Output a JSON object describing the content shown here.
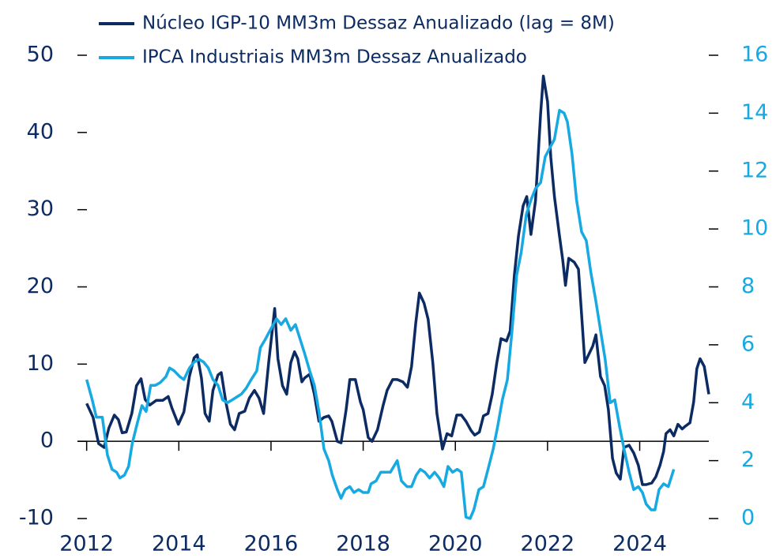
{
  "chart_data": {
    "type": "line",
    "legend": "top",
    "xlim": [
      2011.8,
      2025.5
    ],
    "xticks": [
      2012,
      2014,
      2016,
      2018,
      2020,
      2022,
      2024
    ],
    "ylim": [
      -10,
      50
    ],
    "yticks": [
      -10,
      0,
      10,
      20,
      30,
      40,
      50
    ],
    "y2lim": [
      0,
      16
    ],
    "y2ticks": [
      0,
      2,
      4,
      6,
      8,
      10,
      12,
      14,
      16
    ],
    "series": [
      {
        "name": "Núcleo IGP-10 MM3m Dessaz Anualizado (lag = 8M)",
        "color": "#0d2b63",
        "axis": "y",
        "x": [
          2012.0,
          2012.14,
          2012.26,
          2012.38,
          2012.48,
          2012.6,
          2012.69,
          2012.77,
          2012.86,
          2012.98,
          2013.08,
          2013.18,
          2013.27,
          2013.37,
          2013.51,
          2013.65,
          2013.77,
          2013.85,
          2013.99,
          2014.11,
          2014.23,
          2014.33,
          2014.4,
          2014.49,
          2014.57,
          2014.66,
          2014.74,
          2014.85,
          2014.92,
          2015.02,
          2015.12,
          2015.21,
          2015.31,
          2015.43,
          2015.53,
          2015.64,
          2015.74,
          2015.84,
          2015.95,
          2016.08,
          2016.15,
          2016.25,
          2016.34,
          2016.43,
          2016.51,
          2016.58,
          2016.67,
          2016.73,
          2016.84,
          2016.94,
          2017.04,
          2017.15,
          2017.25,
          2017.32,
          2017.44,
          2017.52,
          2017.63,
          2017.71,
          2017.83,
          2017.94,
          2018.0,
          2018.11,
          2018.19,
          2018.31,
          2018.43,
          2018.52,
          2018.64,
          2018.74,
          2018.86,
          2018.96,
          2019.05,
          2019.14,
          2019.22,
          2019.32,
          2019.41,
          2019.51,
          2019.6,
          2019.72,
          2019.82,
          2019.92,
          2020.03,
          2020.13,
          2020.23,
          2020.34,
          2020.42,
          2020.52,
          2020.61,
          2020.71,
          2020.8,
          2020.9,
          2020.99,
          2021.11,
          2021.19,
          2021.28,
          2021.37,
          2021.47,
          2021.55,
          2021.64,
          2021.74,
          2021.85,
          2021.91,
          2022.0,
          2022.07,
          2022.15,
          2022.26,
          2022.33,
          2022.39,
          2022.46,
          2022.58,
          2022.67,
          2022.74,
          2022.81,
          2022.89,
          2022.98,
          2023.05,
          2023.15,
          2023.24,
          2023.32,
          2023.41,
          2023.49,
          2023.58,
          2023.66,
          2023.77,
          2023.87,
          2023.97,
          2024.06,
          2024.14,
          2024.26,
          2024.35,
          2024.44,
          2024.52,
          2024.57,
          2024.66,
          2024.74,
          2024.83,
          2024.92,
          2025.0,
          2025.09,
          2025.17,
          2025.24,
          2025.31,
          2025.4,
          2025.5
        ],
        "values": [
          4.9,
          3.1,
          -0.3,
          -0.8,
          1.7,
          3.4,
          2.8,
          1.1,
          1.2,
          3.6,
          7.2,
          8.1,
          5.4,
          4.7,
          5.3,
          5.3,
          5.8,
          4.3,
          2.2,
          3.8,
          8.4,
          10.8,
          11.2,
          8.2,
          3.6,
          2.6,
          6.6,
          8.6,
          8.9,
          5.1,
          2.2,
          1.5,
          3.6,
          3.9,
          5.6,
          6.6,
          5.6,
          3.6,
          10.2,
          17.2,
          10.7,
          7.2,
          6.1,
          10.2,
          11.6,
          10.7,
          7.7,
          8.2,
          8.7,
          6.1,
          2.6,
          3.1,
          3.3,
          2.6,
          0,
          -0.2,
          4.1,
          8.0,
          8.0,
          5.1,
          4.1,
          0.5,
          0,
          1.5,
          4.6,
          6.6,
          8.0,
          8.0,
          7.7,
          7.0,
          9.7,
          15.3,
          19.2,
          17.9,
          15.8,
          10.2,
          3.6,
          -1.0,
          1.0,
          0.7,
          3.4,
          3.4,
          2.6,
          1.4,
          0.8,
          1.2,
          3.3,
          3.6,
          6.1,
          10.2,
          13.3,
          13.0,
          14.3,
          21.5,
          26.6,
          30.5,
          31.7,
          26.8,
          31.2,
          42.4,
          47.3,
          44.0,
          36.8,
          31.7,
          26.6,
          23.5,
          20.2,
          23.7,
          23.2,
          22.3,
          16.4,
          10.2,
          11.2,
          12.3,
          13.8,
          8.4,
          7.2,
          4.1,
          -2.2,
          -4.1,
          -4.9,
          -0.8,
          -0.5,
          -1.5,
          -3.1,
          -5.6,
          -5.6,
          -5.4,
          -4.6,
          -3.1,
          -1.3,
          1.0,
          1.5,
          0.7,
          2.2,
          1.6,
          2.0,
          2.4,
          5.1,
          9.4,
          10.7,
          9.7,
          6.1
        ]
      },
      {
        "name": "IPCA Industriais MM3m Dessaz Anualizado",
        "color": "#17a9e1",
        "axis": "y2",
        "x": [
          2012.0,
          2012.12,
          2012.21,
          2012.34,
          2012.45,
          2012.55,
          2012.65,
          2012.72,
          2012.82,
          2012.91,
          2012.99,
          2013.1,
          2013.2,
          2013.29,
          2013.39,
          2013.49,
          2013.6,
          2013.72,
          2013.8,
          2013.9,
          2014.02,
          2014.11,
          2014.23,
          2014.33,
          2014.44,
          2014.54,
          2014.64,
          2014.74,
          2014.85,
          2014.95,
          2015.05,
          2015.16,
          2015.26,
          2015.36,
          2015.46,
          2015.57,
          2015.69,
          2015.77,
          2015.88,
          2015.98,
          2016.12,
          2016.22,
          2016.32,
          2016.43,
          2016.53,
          2016.63,
          2016.73,
          2016.84,
          2016.94,
          2017.04,
          2017.15,
          2017.25,
          2017.33,
          2017.44,
          2017.52,
          2017.61,
          2017.71,
          2017.8,
          2017.9,
          2018.0,
          2018.11,
          2018.17,
          2018.28,
          2018.38,
          2018.48,
          2018.59,
          2018.74,
          2018.83,
          2018.95,
          2019.05,
          2019.15,
          2019.24,
          2019.34,
          2019.44,
          2019.55,
          2019.65,
          2019.75,
          2019.84,
          2019.94,
          2020.04,
          2020.13,
          2020.23,
          2020.32,
          2020.4,
          2020.51,
          2020.61,
          2020.71,
          2020.82,
          2020.92,
          2021.02,
          2021.13,
          2021.23,
          2021.33,
          2021.43,
          2021.54,
          2021.64,
          2021.74,
          2021.85,
          2021.95,
          2022.05,
          2022.15,
          2022.26,
          2022.36,
          2022.43,
          2022.53,
          2022.63,
          2022.74,
          2022.84,
          2022.94,
          2023.05,
          2023.15,
          2023.25,
          2023.36,
          2023.46,
          2023.56,
          2023.66,
          2023.77,
          2023.87,
          2023.97,
          2024.06,
          2024.14,
          2024.25,
          2024.33,
          2024.42,
          2024.52,
          2024.62,
          2024.74
        ],
        "values": [
          4.8,
          4.1,
          3.5,
          3.5,
          2.2,
          1.7,
          1.6,
          1.4,
          1.5,
          1.8,
          2.6,
          3.3,
          3.9,
          3.7,
          4.6,
          4.6,
          4.7,
          4.9,
          5.2,
          5.1,
          4.9,
          4.8,
          5.2,
          5.4,
          5.5,
          5.4,
          5.2,
          4.8,
          4.6,
          4.1,
          4.0,
          4.1,
          4.2,
          4.3,
          4.5,
          4.8,
          5.1,
          5.9,
          6.2,
          6.5,
          6.9,
          6.7,
          6.9,
          6.5,
          6.7,
          6.2,
          5.7,
          5.1,
          4.6,
          3.7,
          2.4,
          2.0,
          1.5,
          1.0,
          0.7,
          1.0,
          1.1,
          0.9,
          1.0,
          0.9,
          0.9,
          1.2,
          1.3,
          1.6,
          1.6,
          1.6,
          2.0,
          1.3,
          1.1,
          1.1,
          1.5,
          1.7,
          1.6,
          1.4,
          1.6,
          1.4,
          1.1,
          1.8,
          1.6,
          1.7,
          1.6,
          0.05,
          0.0,
          0.3,
          1.0,
          1.1,
          1.7,
          2.4,
          3.2,
          4.1,
          4.8,
          6.5,
          8.4,
          9.2,
          10.5,
          11.0,
          11.4,
          11.6,
          12.5,
          12.8,
          13.1,
          14.1,
          14.0,
          13.7,
          12.6,
          11.0,
          9.9,
          9.6,
          8.5,
          7.5,
          6.5,
          5.5,
          4.0,
          4.1,
          3.2,
          2.4,
          1.6,
          1.0,
          1.1,
          0.9,
          0.5,
          0.3,
          0.3,
          1.0,
          1.2,
          1.1,
          1.7
        ]
      }
    ]
  }
}
